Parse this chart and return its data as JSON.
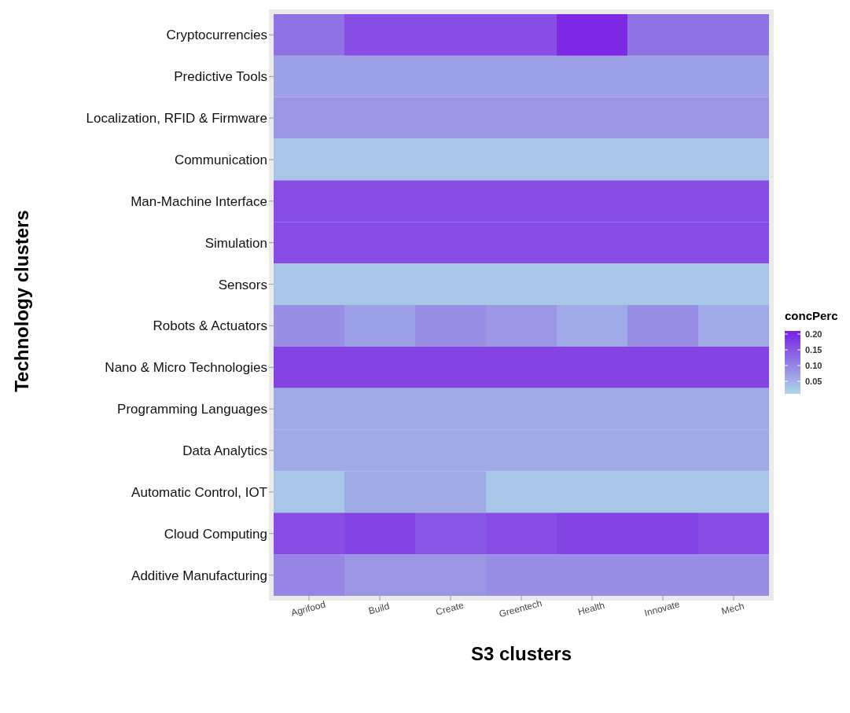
{
  "chart_data": {
    "type": "heatmap",
    "xlabel": "S3 clusters",
    "ylabel": "Technology clusters",
    "legend_title": "concPerc",
    "categories": [
      "Agrifood",
      "Build",
      "Create",
      "Greentech",
      "Health",
      "Innovate",
      "Mech"
    ],
    "y_categories": [
      "Cryptocurrencies",
      "Predictive Tools",
      "Localization, RFID & Firmware",
      "Communication",
      "Man-Machine Interface",
      "Simulation",
      "Sensors",
      "Robots & Actuators",
      "Nano & Micro Technologies",
      "Programming Languages",
      "Data Analytics",
      "Automatic Control, IOT",
      "Cloud Computing",
      "Additive Manufacturing"
    ],
    "cells": [
      [
        0.12,
        0.16,
        0.16,
        0.16,
        0.2,
        0.12,
        0.12
      ],
      [
        0.07,
        0.07,
        0.07,
        0.07,
        0.07,
        0.07,
        0.07
      ],
      [
        0.08,
        0.08,
        0.08,
        0.08,
        0.08,
        0.08,
        0.08
      ],
      [
        0.03,
        0.03,
        0.03,
        0.03,
        0.03,
        0.03,
        0.03
      ],
      [
        0.16,
        0.16,
        0.16,
        0.16,
        0.16,
        0.16,
        0.16
      ],
      [
        0.16,
        0.16,
        0.16,
        0.16,
        0.16,
        0.16,
        0.16
      ],
      [
        0.03,
        0.03,
        0.03,
        0.03,
        0.03,
        0.03,
        0.03
      ],
      [
        0.09,
        0.07,
        0.09,
        0.08,
        0.06,
        0.09,
        0.06
      ],
      [
        0.17,
        0.17,
        0.17,
        0.17,
        0.17,
        0.17,
        0.17
      ],
      [
        0.06,
        0.06,
        0.06,
        0.06,
        0.06,
        0.06,
        0.06
      ],
      [
        0.06,
        0.06,
        0.06,
        0.06,
        0.06,
        0.06,
        0.06
      ],
      [
        0.03,
        0.06,
        0.06,
        0.03,
        0.03,
        0.03,
        0.03
      ],
      [
        0.16,
        0.17,
        0.15,
        0.16,
        0.17,
        0.17,
        0.16
      ],
      [
        0.1,
        0.08,
        0.08,
        0.09,
        0.09,
        0.09,
        0.09
      ]
    ],
    "clim": [
      0.01,
      0.21
    ],
    "cticks": [
      0.05,
      {
        "value": 0.1,
        "label": "0.10"
      },
      0.15,
      {
        "value": 0.2,
        "label": "0.20"
      }
    ]
  }
}
